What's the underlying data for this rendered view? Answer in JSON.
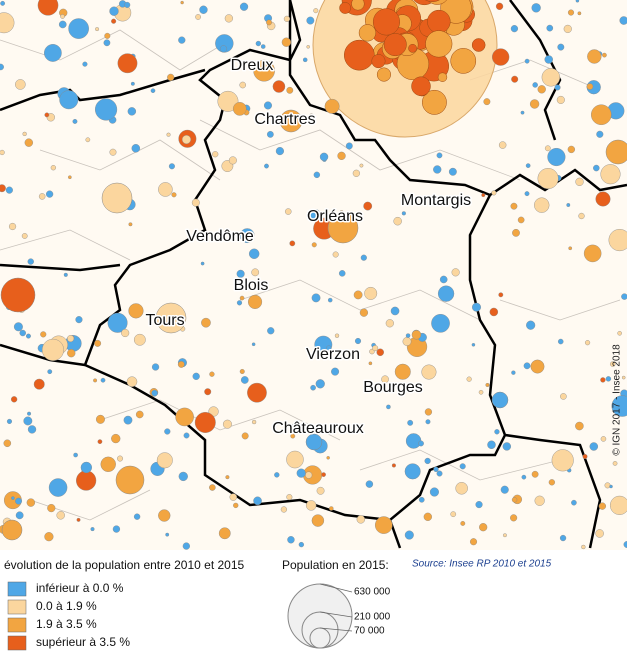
{
  "map": {
    "cities": [
      "Dreux",
      "Chartres",
      "Orléans",
      "Montargis",
      "Vendôme",
      "Blois",
      "Tours",
      "Vierzon",
      "Bourges",
      "Châteauroux"
    ],
    "credit": "© IGN 2017 - Insee 2018"
  },
  "legend": {
    "title": "évolution de la population entre 2010 et 2015",
    "classes": [
      {
        "label": "inférieur à 0.0 %",
        "color": "#4fa7e6"
      },
      {
        "label": "0.0 à 1.9 %",
        "color": "#fbd69e"
      },
      {
        "label": "1.9 à 3.5 %",
        "color": "#f2a541"
      },
      {
        "label": "supérieur à 3.5 %",
        "color": "#e75f1c"
      }
    ],
    "size_title": "Population en 2015:",
    "sizes": [
      "630 000",
      "210 000",
      "70 000"
    ],
    "source": "Source: Insee RP 2010 et 2015"
  }
}
